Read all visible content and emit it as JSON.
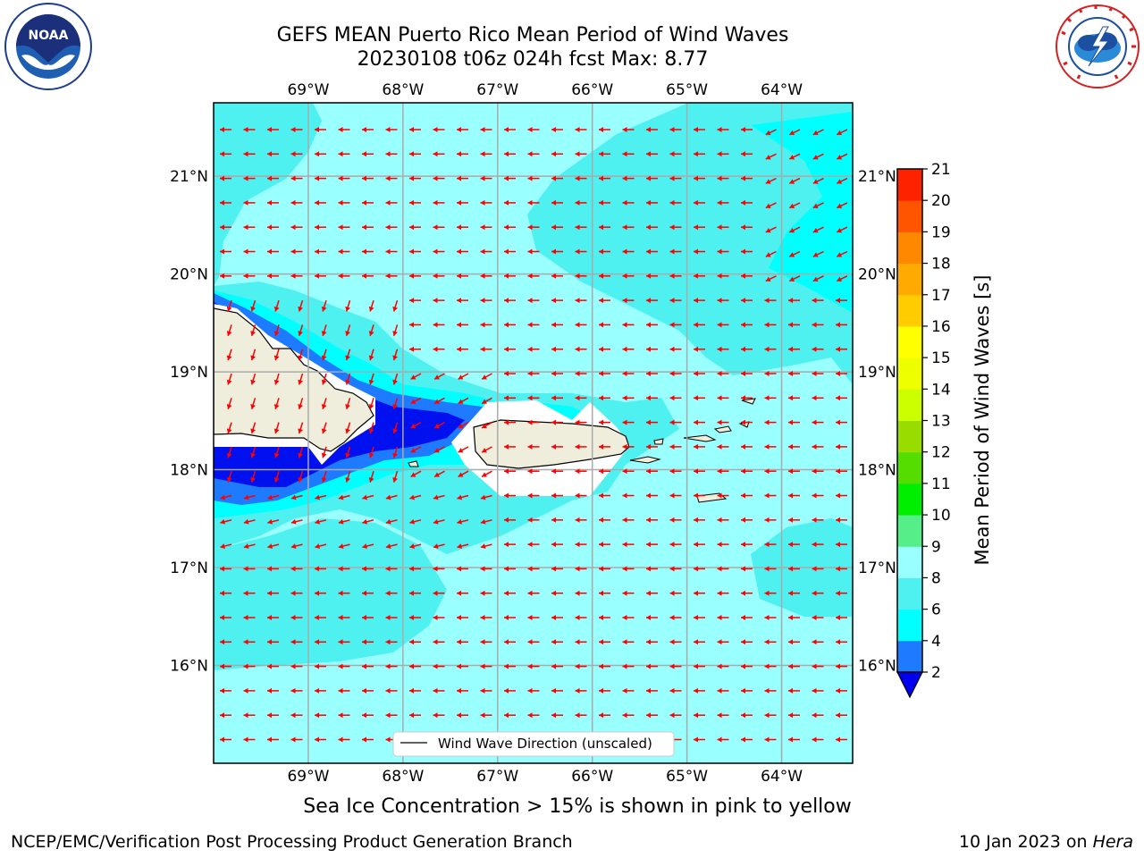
{
  "header": {
    "title_line1": "GEFS MEAN Puerto Rico Mean Period of Wind Waves",
    "title_line2": "20230108 t06z 024h fcst   Max: 8.77"
  },
  "logos": {
    "left": "noaa-logo",
    "right": "national-weather-service-logo"
  },
  "map": {
    "lon_range": [
      -70.0,
      -63.25
    ],
    "lat_range": [
      15.0,
      21.75
    ],
    "lon_ticks": [
      "69°W",
      "68°W",
      "67°W",
      "66°W",
      "65°W",
      "64°W"
    ],
    "lat_ticks": [
      "21°N",
      "20°N",
      "19°N",
      "18°N",
      "17°N",
      "16°N"
    ],
    "grid": true,
    "legend_label": "Wind Wave Direction (unscaled)",
    "legend_position": "bottom-center",
    "arrow_color": "#ff0000",
    "land_color": "#efeedd"
  },
  "colorbar": {
    "label": "Mean Period of Wind Waves [s]",
    "ticks": [
      "2",
      "4",
      "6",
      "8",
      "9",
      "10",
      "11",
      "12",
      "13",
      "14",
      "15",
      "16",
      "17",
      "18",
      "19",
      "20",
      "21"
    ],
    "colors": [
      "#0010ff",
      "#1e7bff",
      "#00ffff",
      "#4ef0f0",
      "#99ffff",
      "#55ee88",
      "#00ee00",
      "#55dd00",
      "#99dd00",
      "#ccff00",
      "#eeff00",
      "#ffff00",
      "#ffcc00",
      "#ffaa00",
      "#ff8800",
      "#ff5500",
      "#ff2200",
      "#ff0000"
    ],
    "under_color": "#0000ee"
  },
  "caption": "Sea Ice Concentration > 15% is shown in pink to yellow",
  "footer": {
    "left": "NCEP/EMC/Verification Post Processing Product Generation Branch",
    "right_prefix": "10 Jan 2023 on ",
    "right_host": "Hera"
  }
}
